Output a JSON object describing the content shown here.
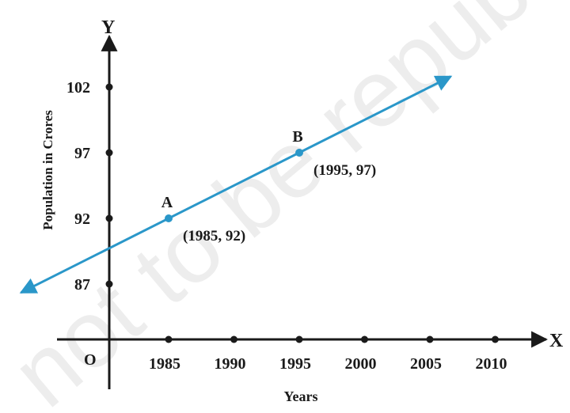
{
  "chart_data": {
    "type": "line",
    "title": "",
    "xlabel": "Years",
    "ylabel": "Population in Crores",
    "x_axis_letter": "X",
    "y_axis_letter": "Y",
    "origin_label": "O",
    "x_ticks": [
      1985,
      1990,
      1995,
      2000,
      2005,
      2010
    ],
    "y_ticks": [
      87,
      92,
      97,
      102
    ],
    "series": [
      {
        "color": "#2a97c9",
        "points": [
          {
            "label": "A",
            "x": 1985,
            "y": 92,
            "annotation": "(1985, 92)"
          },
          {
            "label": "B",
            "x": 1995,
            "y": 97,
            "annotation": "(1995, 97)"
          }
        ],
        "extends_both_directions": true
      }
    ],
    "grid": false
  },
  "watermark": "not to be republished © NCERT"
}
